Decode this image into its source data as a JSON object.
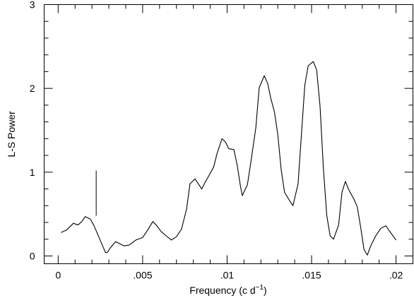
{
  "chart_data": {
    "type": "line",
    "xlabel": "Frequency (c d",
    "xlabel_sup": "−1",
    "xlabel_end": ")",
    "ylabel": "L-S Power",
    "xlim": [
      -0.00083,
      0.021
    ],
    "ylim": [
      -0.093,
      3
    ],
    "xticks": [
      0,
      {
        "value": 0.005,
        "label": ".005"
      },
      {
        "value": 0.01,
        "label": ".01"
      },
      {
        "value": 0.015,
        "label": ".015"
      },
      {
        "value": 0.02,
        "label": ".02"
      }
    ],
    "yticks": [
      0,
      1,
      2,
      3
    ],
    "xminorticks": [
      0.001,
      0.002,
      0.003,
      0.004,
      0.006,
      0.007,
      0.008,
      0.009,
      0.011,
      0.012,
      0.013,
      0.014,
      0.016,
      0.017,
      0.018,
      0.019
    ],
    "yminorticks": [
      0.2,
      0.4,
      0.6,
      0.8,
      1.2,
      1.4,
      1.6,
      1.8,
      2.2,
      2.4,
      2.6,
      2.8
    ],
    "marker": {
      "x": 0.00225,
      "y": [
        0.48,
        1.02
      ]
    },
    "series": [
      {
        "color": "#000000",
        "x": [
          0.00017,
          0.0005,
          0.0009,
          0.00117,
          0.0014,
          0.0016,
          0.0019,
          0.0021,
          0.0024,
          0.0028,
          0.0029,
          0.0031,
          0.0034,
          0.0036,
          0.0039,
          0.0042,
          0.0046,
          0.005,
          0.0053,
          0.0056,
          0.0058,
          0.0061,
          0.0064,
          0.0067,
          0.007,
          0.0073,
          0.0076,
          0.0078,
          0.0081,
          0.0083,
          0.0085,
          0.0087,
          0.0089,
          0.0092,
          0.0094,
          0.0097,
          0.0099,
          0.0101,
          0.0104,
          0.0106,
          0.0108,
          0.0109,
          0.0112,
          0.0114,
          0.0117,
          0.0119,
          0.0122,
          0.0124,
          0.0126,
          0.0128,
          0.013,
          0.0132,
          0.0134,
          0.0137,
          0.0139,
          0.0142,
          0.0144,
          0.0146,
          0.0148,
          0.0151,
          0.0153,
          0.0155,
          0.0157,
          0.0159,
          0.0161,
          0.0163,
          0.0166,
          0.0168,
          0.017,
          0.0172,
          0.0175,
          0.0177,
          0.0179,
          0.0181,
          0.0183,
          0.0185,
          0.0188,
          0.0191,
          0.0194,
          0.0196,
          0.02
        ],
        "values": [
          0.28,
          0.31,
          0.39,
          0.37,
          0.41,
          0.47,
          0.44,
          0.37,
          0.23,
          0.04,
          0.04,
          0.1,
          0.17,
          0.15,
          0.12,
          0.13,
          0.19,
          0.22,
          0.31,
          0.41,
          0.37,
          0.29,
          0.24,
          0.19,
          0.23,
          0.32,
          0.56,
          0.86,
          0.92,
          0.86,
          0.8,
          0.88,
          0.95,
          1.06,
          1.22,
          1.4,
          1.36,
          1.28,
          1.27,
          1.08,
          0.82,
          0.72,
          0.85,
          1.11,
          1.53,
          2.01,
          2.15,
          2.06,
          1.87,
          1.72,
          1.45,
          1.03,
          0.76,
          0.66,
          0.6,
          0.86,
          1.45,
          2.04,
          2.27,
          2.32,
          2.22,
          1.79,
          1.04,
          0.48,
          0.24,
          0.2,
          0.37,
          0.76,
          0.89,
          0.79,
          0.68,
          0.59,
          0.35,
          0.08,
          0.01,
          0.12,
          0.24,
          0.33,
          0.36,
          0.3,
          0.19
        ]
      }
    ]
  }
}
